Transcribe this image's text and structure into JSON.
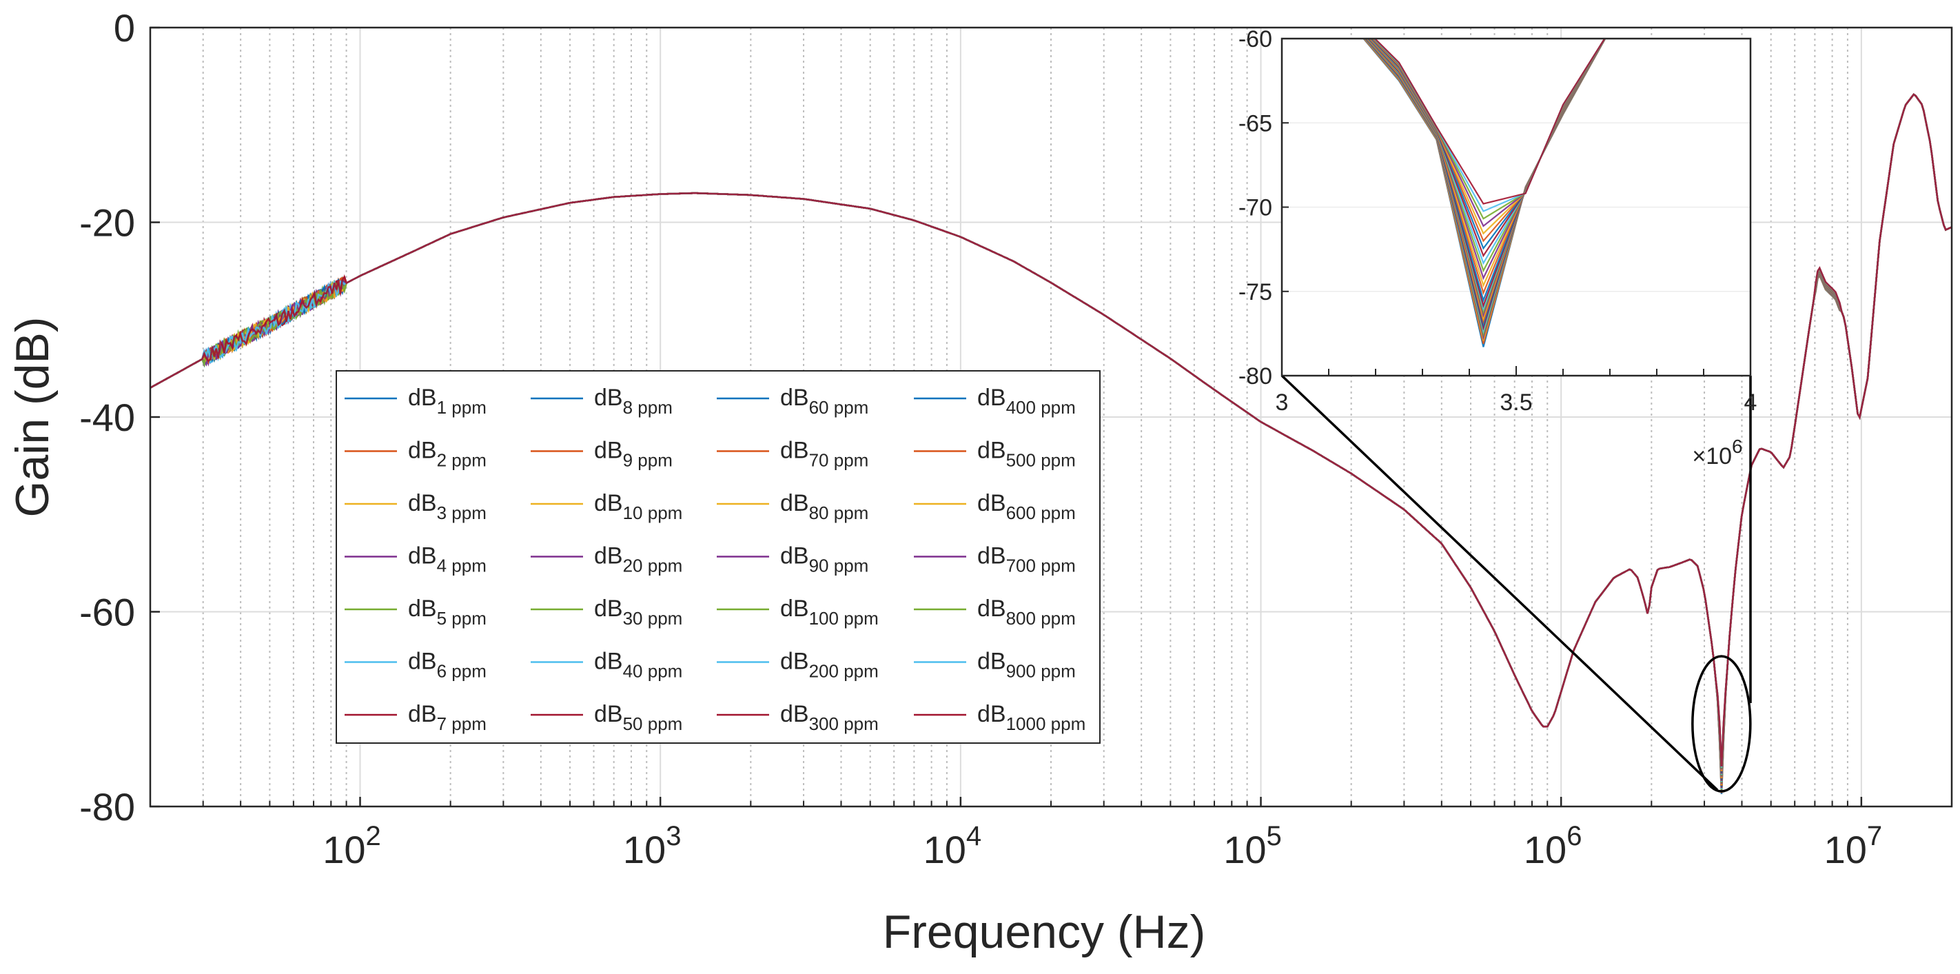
{
  "chart_data": [
    {
      "type": "line",
      "name": "main",
      "xscale": "log",
      "xlabel": "Frequency (Hz)",
      "ylabel": "Gain (dB)",
      "xlim": [
        20,
        20000000
      ],
      "ylim": [
        -80,
        0
      ],
      "yticks": [
        0,
        -20,
        -40,
        -60,
        -80
      ],
      "ytick_labels": [
        "0",
        "-20",
        "-40",
        "-60",
        "-80"
      ],
      "xticks": [
        100,
        1000,
        10000,
        100000,
        1000000,
        10000000
      ],
      "xtick_labels": [
        {
          "base": "10",
          "exp": "2"
        },
        {
          "base": "10",
          "exp": "3"
        },
        {
          "base": "10",
          "exp": "4"
        },
        {
          "base": "10",
          "exp": "5"
        },
        {
          "base": "10",
          "exp": "6"
        },
        {
          "base": "10",
          "exp": "7"
        }
      ],
      "grid": true,
      "legend_location": "center-left",
      "curve_points": [
        [
          20,
          -37.0
        ],
        [
          30,
          -34.0
        ],
        [
          40,
          -32.0
        ],
        [
          50,
          -30.5
        ],
        [
          70,
          -28.0
        ],
        [
          100,
          -25.5
        ],
        [
          150,
          -23.0
        ],
        [
          200,
          -21.2
        ],
        [
          300,
          -19.5
        ],
        [
          500,
          -18.0
        ],
        [
          700,
          -17.4
        ],
        [
          1000,
          -17.1
        ],
        [
          1300,
          -17.0
        ],
        [
          2000,
          -17.2
        ],
        [
          3000,
          -17.6
        ],
        [
          5000,
          -18.6
        ],
        [
          7000,
          -19.8
        ],
        [
          10000,
          -21.5
        ],
        [
          15000,
          -24.0
        ],
        [
          20000,
          -26.2
        ],
        [
          30000,
          -29.5
        ],
        [
          50000,
          -34.0
        ],
        [
          70000,
          -37.2
        ],
        [
          100000,
          -40.5
        ],
        [
          150000,
          -43.5
        ],
        [
          200000,
          -45.8
        ],
        [
          300000,
          -49.5
        ],
        [
          400000,
          -53.0
        ],
        [
          500000,
          -57.5
        ],
        [
          600000,
          -62.0
        ],
        [
          700000,
          -66.5
        ],
        [
          800000,
          -70.2
        ],
        [
          870000,
          -71.8
        ],
        [
          900000,
          -71.8
        ],
        [
          950000,
          -70.5
        ],
        [
          1100000,
          -64.0
        ],
        [
          1300000,
          -59.0
        ],
        [
          1500000,
          -56.5
        ],
        [
          1700000,
          -55.6
        ],
        [
          1800000,
          -56.5
        ],
        [
          1900000,
          -59.0
        ],
        [
          1950000,
          -60.5
        ],
        [
          2000000,
          -57.5
        ],
        [
          2100000,
          -55.6
        ],
        [
          2300000,
          -55.4
        ],
        [
          2500000,
          -55.0
        ],
        [
          2700000,
          -54.6
        ],
        [
          2850000,
          -55.3
        ],
        [
          3000000,
          -58.0
        ],
        [
          3200000,
          -64.0
        ],
        [
          3350000,
          -70.0
        ],
        [
          3420000,
          -77.5
        ],
        [
          3500000,
          -70.0
        ],
        [
          3650000,
          -62.0
        ],
        [
          3800000,
          -56.0
        ],
        [
          4000000,
          -50.0
        ],
        [
          4300000,
          -45.0
        ],
        [
          4600000,
          -43.2
        ],
        [
          5000000,
          -43.6
        ],
        [
          5500000,
          -45.2
        ],
        [
          5800000,
          -44.0
        ],
        [
          6200000,
          -38.0
        ],
        [
          6700000,
          -31.0
        ],
        [
          7200000,
          -24.8
        ],
        [
          7600000,
          -26.5
        ],
        [
          8200000,
          -27.5
        ],
        [
          8800000,
          -30.0
        ],
        [
          9300000,
          -35.0
        ],
        [
          9800000,
          -40.5
        ],
        [
          10500000,
          -36.0
        ],
        [
          11500000,
          -22.0
        ],
        [
          12800000,
          -12.0
        ],
        [
          14000000,
          -8.0
        ],
        [
          15000000,
          -6.8
        ],
        [
          16000000,
          -8.0
        ],
        [
          17000000,
          -12.0
        ],
        [
          18000000,
          -18.0
        ],
        [
          19000000,
          -20.8
        ],
        [
          20000000,
          -20.5
        ]
      ],
      "noise_region": [
        30,
        90
      ],
      "series": [
        {
          "name": "dB",
          "sub": "1 ppm",
          "color": "#0072BD"
        },
        {
          "name": "dB",
          "sub": "2 ppm",
          "color": "#D95319"
        },
        {
          "name": "dB",
          "sub": "3 ppm",
          "color": "#EDB120"
        },
        {
          "name": "dB",
          "sub": "4 ppm",
          "color": "#7E2F8E"
        },
        {
          "name": "dB",
          "sub": "5 ppm",
          "color": "#77AC30"
        },
        {
          "name": "dB",
          "sub": "6 ppm",
          "color": "#4DBEEE"
        },
        {
          "name": "dB",
          "sub": "7 ppm",
          "color": "#A2142F"
        },
        {
          "name": "dB",
          "sub": "8 ppm",
          "color": "#0072BD"
        },
        {
          "name": "dB",
          "sub": "9 ppm",
          "color": "#D95319"
        },
        {
          "name": "dB",
          "sub": "10 ppm",
          "color": "#EDB120"
        },
        {
          "name": "dB",
          "sub": "20 ppm",
          "color": "#7E2F8E"
        },
        {
          "name": "dB",
          "sub": "30 ppm",
          "color": "#77AC30"
        },
        {
          "name": "dB",
          "sub": "40 ppm",
          "color": "#4DBEEE"
        },
        {
          "name": "dB",
          "sub": "50 ppm",
          "color": "#A2142F"
        },
        {
          "name": "dB",
          "sub": "60 ppm",
          "color": "#0072BD"
        },
        {
          "name": "dB",
          "sub": "70 ppm",
          "color": "#D95319"
        },
        {
          "name": "dB",
          "sub": "80 ppm",
          "color": "#EDB120"
        },
        {
          "name": "dB",
          "sub": "90 ppm",
          "color": "#7E2F8E"
        },
        {
          "name": "dB",
          "sub": "100 ppm",
          "color": "#77AC30"
        },
        {
          "name": "dB",
          "sub": "200 ppm",
          "color": "#4DBEEE"
        },
        {
          "name": "dB",
          "sub": "300 ppm",
          "color": "#A2142F"
        },
        {
          "name": "dB",
          "sub": "400 ppm",
          "color": "#0072BD"
        },
        {
          "name": "dB",
          "sub": "500 ppm",
          "color": "#D95319"
        },
        {
          "name": "dB",
          "sub": "600 ppm",
          "color": "#EDB120"
        },
        {
          "name": "dB",
          "sub": "700 ppm",
          "color": "#7E2F8E"
        },
        {
          "name": "dB",
          "sub": "800 ppm",
          "color": "#77AC30"
        },
        {
          "name": "dB",
          "sub": "900 ppm",
          "color": "#4DBEEE"
        },
        {
          "name": "dB",
          "sub": "1000 ppm",
          "color": "#A2142F"
        }
      ]
    },
    {
      "type": "line",
      "name": "inset-zoom",
      "xscale": "linear",
      "xlim": [
        3000000,
        4000000
      ],
      "ylim": [
        -80,
        -60
      ],
      "yticks": [
        -60,
        -65,
        -70,
        -75,
        -80
      ],
      "ytick_labels": [
        "-60",
        "-65",
        "-70",
        "-75",
        "-80"
      ],
      "xticks": [
        3000000,
        3500000,
        4000000
      ],
      "xtick_labels": [
        "3",
        "3.5",
        "4"
      ],
      "x_multiplier": {
        "base": "×10",
        "exp": "6"
      },
      "dip_x": 3430000,
      "dip_min_range": [
        -78.3,
        -69.8
      ],
      "zoom_region": {
        "x": 3420000,
        "y_center": -71.5,
        "shape": "ellipse"
      }
    }
  ]
}
